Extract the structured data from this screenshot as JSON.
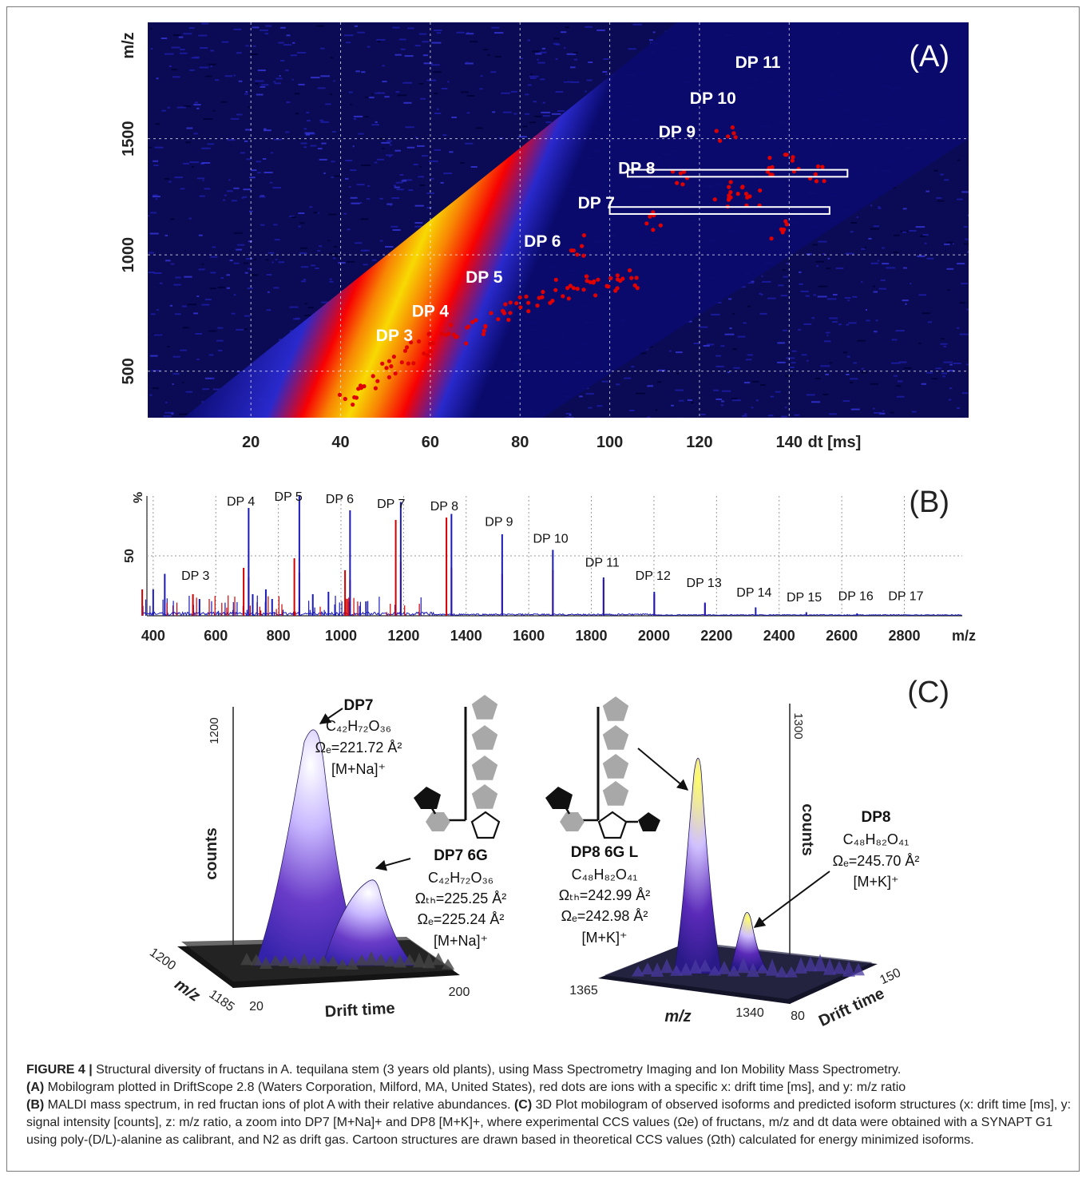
{
  "figure": {
    "caption_label": "FIGURE 4 |",
    "caption_body": "Structural diversity of fructans in A. tequilana stem (3 years old plants), using Mass Spectrometry Imaging and Ion Mobility Mass Spectrometry.",
    "caption_a_label": "(A)",
    "caption_a": "Mobilogram plotted in DriftScope 2.8 (Waters Corporation, Milford, MA, United States), red dots are ions with a specific x: drift time [ms], and y: m/z ratio",
    "caption_b_label": "(B)",
    "caption_b": "MALDI mass spectrum, in red fructan ions of plot A with their relative abundances.",
    "caption_c_label": "(C)",
    "caption_c": "3D Plot mobilogram of observed isoforms and predicted isoform structures (x: drift time [ms], y: signal intensity [counts], z: m/z ratio, a zoom into DP7 [M+Na]+ and DP8 [M+K]+, where experimental CCS values (Ωe) of fructans, m/z and dt data were obtained with a SYNAPT G1 using poly-(D/L)-alanine as calibrant, and N2 as drift gas. Cartoon structures are drawn based in theoretical CCS values (Ωth) calculated for energy minimized isoforms."
  },
  "chart_data": [
    {
      "panel": "(A)",
      "type": "heatmap",
      "xlabel": "dt [ms]",
      "ylabel": "m/z",
      "x_ticks": [
        20,
        40,
        60,
        80,
        100,
        120,
        140
      ],
      "y_ticks": [
        500,
        1000,
        1500
      ],
      "xlim": [
        -3,
        180
      ],
      "ylim": [
        300,
        2000
      ],
      "grid": true,
      "band_colors": [
        "#0a0a6e",
        "#2a2ad0",
        "#ff0000",
        "#ff8a00",
        "#ffe000"
      ],
      "annotations": [
        {
          "label": "DP 3",
          "dt": 52,
          "mz": 630
        },
        {
          "label": "DP 4",
          "dt": 60,
          "mz": 735
        },
        {
          "label": "DP 5",
          "dt": 72,
          "mz": 880
        },
        {
          "label": "DP 6",
          "dt": 85,
          "mz": 1035
        },
        {
          "label": "DP 7",
          "dt": 97,
          "mz": 1200
        },
        {
          "label": "DP 8",
          "dt": 106,
          "mz": 1350
        },
        {
          "label": "DP 9",
          "dt": 115,
          "mz": 1505
        },
        {
          "label": "DP 10",
          "dt": 123,
          "mz": 1650
        },
        {
          "label": "DP 11",
          "dt": 133,
          "mz": 1805
        }
      ],
      "highlight_boxes": [
        {
          "dt_start": 104,
          "dt_end": 153,
          "mz_start": 1336,
          "mz_end": 1366
        },
        {
          "dt_start": 100,
          "dt_end": 149,
          "mz_start": 1176,
          "mz_end": 1206
        }
      ],
      "red_dot_clusters": [
        {
          "dt": 42,
          "mz": 400
        },
        {
          "dt": 46,
          "mz": 450
        },
        {
          "dt": 50,
          "mz": 500
        },
        {
          "dt": 54,
          "mz": 560
        },
        {
          "dt": 58,
          "mz": 600
        },
        {
          "dt": 62,
          "mz": 640
        },
        {
          "dt": 66,
          "mz": 660
        },
        {
          "dt": 70,
          "mz": 700
        },
        {
          "dt": 74,
          "mz": 730
        },
        {
          "dt": 78,
          "mz": 760
        },
        {
          "dt": 82,
          "mz": 780
        },
        {
          "dt": 86,
          "mz": 820
        },
        {
          "dt": 90,
          "mz": 850
        },
        {
          "dt": 94,
          "mz": 880
        },
        {
          "dt": 98,
          "mz": 860
        },
        {
          "dt": 102,
          "mz": 880
        },
        {
          "dt": 104,
          "mz": 900
        },
        {
          "dt": 92,
          "mz": 1040
        },
        {
          "dt": 110,
          "mz": 1140
        },
        {
          "dt": 125,
          "mz": 1240
        },
        {
          "dt": 128,
          "mz": 1270
        },
        {
          "dt": 132,
          "mz": 1240
        },
        {
          "dt": 136,
          "mz": 1380
        },
        {
          "dt": 140,
          "mz": 1400
        },
        {
          "dt": 146,
          "mz": 1360
        },
        {
          "dt": 115,
          "mz": 1340
        },
        {
          "dt": 126,
          "mz": 1530
        },
        {
          "dt": 138,
          "mz": 1100
        }
      ],
      "panel_label": "(A)"
    },
    {
      "panel": "(B)",
      "type": "bar",
      "xlabel": "m/z",
      "ylabel": "%",
      "y_tick": "50",
      "x_ticks": [
        400,
        600,
        800,
        1000,
        1200,
        1400,
        1600,
        1800,
        2000,
        2200,
        2400,
        2600,
        2800
      ],
      "xlim": [
        380,
        2985
      ],
      "ylim": [
        0,
        100
      ],
      "grid": true,
      "series": [
        {
          "color": "#d40000",
          "peaks": [
            {
              "mz": 365,
              "h": 22
            },
            {
              "mz": 527,
              "h": 18
            },
            {
              "mz": 689,
              "h": 40
            },
            {
              "mz": 705,
              "h": 32
            },
            {
              "mz": 851,
              "h": 48
            },
            {
              "mz": 867,
              "h": 36
            },
            {
              "mz": 1013,
              "h": 38
            },
            {
              "mz": 1029,
              "h": 30
            },
            {
              "mz": 1175,
              "h": 80
            },
            {
              "mz": 1191,
              "h": 45
            },
            {
              "mz": 1337,
              "h": 82
            },
            {
              "mz": 1353,
              "h": 40
            },
            {
              "mz": 1515,
              "h": 35
            },
            {
              "mz": 1677,
              "h": 38
            },
            {
              "mz": 1839,
              "h": 30
            },
            {
              "mz": 2001,
              "h": 18
            },
            {
              "mz": 2163,
              "h": 10
            }
          ]
        },
        {
          "color": "#1a1ab8",
          "peaks": [
            {
              "mz": 400,
              "h": 22
            },
            {
              "mz": 437,
              "h": 35
            },
            {
              "mz": 548,
              "h": 14
            },
            {
              "mz": 705,
              "h": 90
            },
            {
              "mz": 718,
              "h": 18
            },
            {
              "mz": 760,
              "h": 22
            },
            {
              "mz": 780,
              "h": 14
            },
            {
              "mz": 867,
              "h": 100
            },
            {
              "mz": 910,
              "h": 18
            },
            {
              "mz": 960,
              "h": 20
            },
            {
              "mz": 1029,
              "h": 88
            },
            {
              "mz": 1080,
              "h": 12
            },
            {
              "mz": 1191,
              "h": 95
            },
            {
              "mz": 1353,
              "h": 85
            },
            {
              "mz": 1515,
              "h": 68
            },
            {
              "mz": 1677,
              "h": 55
            },
            {
              "mz": 1839,
              "h": 32
            },
            {
              "mz": 2001,
              "h": 20
            },
            {
              "mz": 2163,
              "h": 11
            },
            {
              "mz": 2325,
              "h": 7
            },
            {
              "mz": 2487,
              "h": 3
            },
            {
              "mz": 2649,
              "h": 2
            },
            {
              "mz": 2811,
              "h": 1
            }
          ]
        }
      ],
      "annotations": [
        {
          "label": "DP 3",
          "mz": 535,
          "h": 30
        },
        {
          "label": "DP 4",
          "mz": 680,
          "h": 92
        },
        {
          "label": "DP 5",
          "mz": 832,
          "h": 96
        },
        {
          "label": "DP 6",
          "mz": 996,
          "h": 94
        },
        {
          "label": "DP 7",
          "mz": 1160,
          "h": 90
        },
        {
          "label": "DP 8",
          "mz": 1330,
          "h": 88
        },
        {
          "label": "DP 9",
          "mz": 1505,
          "h": 75
        },
        {
          "label": "DP 10",
          "mz": 1670,
          "h": 61
        },
        {
          "label": "DP 11",
          "mz": 1835,
          "h": 41
        },
        {
          "label": "DP 12",
          "mz": 1997,
          "h": 30
        },
        {
          "label": "DP 13",
          "mz": 2160,
          "h": 24
        },
        {
          "label": "DP 14",
          "mz": 2320,
          "h": 16
        },
        {
          "label": "DP 15",
          "mz": 2480,
          "h": 12
        },
        {
          "label": "DP 16",
          "mz": 2645,
          "h": 13
        },
        {
          "label": "DP 17",
          "mz": 2805,
          "h": 13
        }
      ],
      "panel_label": "(B)"
    },
    {
      "panel": "(C)",
      "type": "area",
      "panel_label": "(C)",
      "left_plot": {
        "zlabel": "counts",
        "z_tick": "1200",
        "mz_ticks": [
          "1200",
          "1185"
        ],
        "mz_label": "m/z",
        "dt_ticks": [
          "20",
          "200"
        ],
        "dt_label": "Drift time",
        "peak_colors": [
          "#ffffff",
          "#c8b8ff",
          "#6a3cc8",
          "#3322aa"
        ]
      },
      "right_plot": {
        "zlabel": "counts",
        "z_tick": "1300",
        "mz_ticks": [
          "1365",
          "1340"
        ],
        "mz_label": "m/z",
        "dt_ticks": [
          "80",
          "150"
        ],
        "dt_label": "Drift time",
        "peak_colors": [
          "#ffff66",
          "#d0c0ff",
          "#5a2ab8",
          "#2a1a88"
        ]
      },
      "labels": {
        "dp7": {
          "name": "DP7",
          "formula": "C₄₂H₇₂O₃₆",
          "ccs": "Ωₑ=221.72 Å²",
          "adduct": "[M+Na]⁺"
        },
        "dp7_6g": {
          "name": "DP7 6G",
          "formula": "C₄₂H₇₂O₃₆",
          "ccs_th": "Ωₜₕ=225.25 Å²",
          "ccs_e": "Ωₑ=225.24 Å²",
          "adduct": "[M+Na]⁺"
        },
        "dp8_6gl": {
          "name": "DP8 6G L",
          "formula": "C₄₈H₈₂O₄₁",
          "ccs_th": "Ωₜₕ=242.99 Å²",
          "ccs_e": "Ωₑ=242.98 Å²",
          "adduct": "[M+K]⁺"
        },
        "dp8": {
          "name": "DP8",
          "formula": "C₄₈H₈₂O₄₁",
          "ccs": "Ωₑ=245.70 Å²",
          "adduct": "[M+K]⁺"
        }
      },
      "structure_colors": {
        "hexose": "#a8a8a8",
        "fructose_chain": "#a8a8a8",
        "terminal": "#111111"
      }
    }
  ]
}
